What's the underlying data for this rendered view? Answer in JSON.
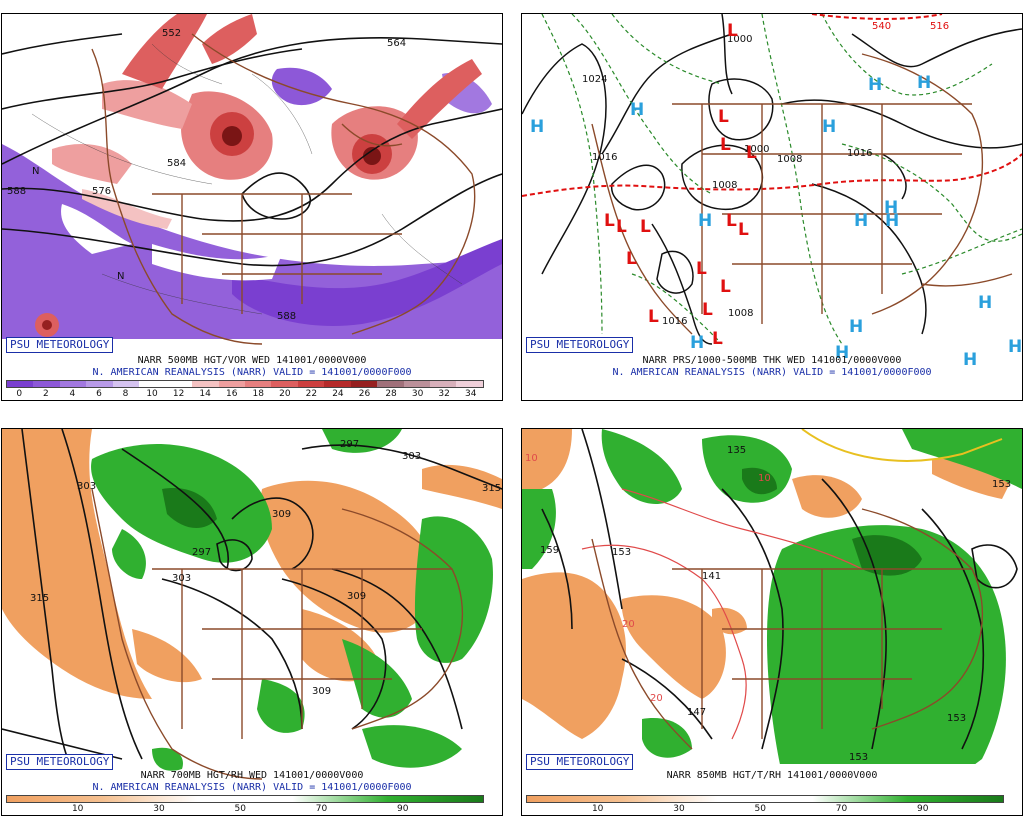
{
  "panels": {
    "vorticity": {
      "title": "NARR 500MB HGT/VOR WED 141001/0000V000",
      "subtitle": "N. AMERICAN REANALYSIS (NARR) VALID = 141001/0000F000",
      "badge": "PSU METEOROLOGY",
      "colorbar_ticks": [
        "0",
        "2",
        "4",
        "6",
        "8",
        "10",
        "12",
        "14",
        "16",
        "18",
        "20",
        "22",
        "24",
        "26",
        "28",
        "30",
        "32",
        "34"
      ],
      "colorbar_colors": [
        "#7a3fd0",
        "#8d58d8",
        "#a278e0",
        "#b89ae8",
        "#d5c3f0",
        "#ffffff",
        "#ffffff",
        "#f4c2c2",
        "#ee9f9f",
        "#e67f7f",
        "#dd5f5f",
        "#cc4040",
        "#b52a2a",
        "#962020",
        "#a0707a",
        "#bb909a",
        "#d8b0bb",
        "#f0d0da"
      ],
      "contour_labels": [
        "552",
        "564",
        "576",
        "584",
        "588",
        "588",
        "N",
        "N"
      ]
    },
    "thickness": {
      "title": "NARR PRS/1000-500MB THK WED 141001/0000V000",
      "subtitle": "N. AMERICAN REANALYSIS (NARR) VALID = 141001/0000F000",
      "badge": "PSU METEOROLOGY",
      "contour_labels": [
        "1000",
        "1024",
        "1016",
        "1008",
        "1000",
        "1008",
        "1016",
        "1016",
        "1008",
        "540",
        "516"
      ],
      "high_symbol": "H",
      "low_symbol": "L"
    },
    "rh700": {
      "title": "NARR 700MB HGT/RH WED 141001/0000V000",
      "subtitle": "N. AMERICAN REANALYSIS (NARR) VALID = 141001/0000F000",
      "badge": "PSU METEOROLOGY",
      "colorbar_ticks": [
        "10",
        "30",
        "50",
        "70",
        "90"
      ],
      "contour_labels": [
        "297",
        "303",
        "309",
        "297",
        "303",
        "309",
        "315",
        "315",
        "303",
        "309"
      ]
    },
    "rh850": {
      "title": "NARR 850MB HGT/T/RH 141001/0000V000",
      "badge": "PSU METEOROLOGY",
      "colorbar_ticks": [
        "10",
        "30",
        "50",
        "70",
        "90"
      ],
      "contour_labels": [
        "135",
        "159",
        "153",
        "141",
        "147",
        "153",
        "153",
        "153",
        "10",
        "20",
        "20",
        "10"
      ]
    }
  },
  "colors": {
    "land": "#8b4a2a",
    "dry": "#f0a060",
    "moist": "#30b030",
    "moist_dark": "#1a7a1a",
    "high": "#2aa0dc",
    "low": "#e01010",
    "thickness_cold": "#e01010",
    "thickness_line": "#2a8a2a",
    "psu_blue": "#1a2fa8"
  }
}
